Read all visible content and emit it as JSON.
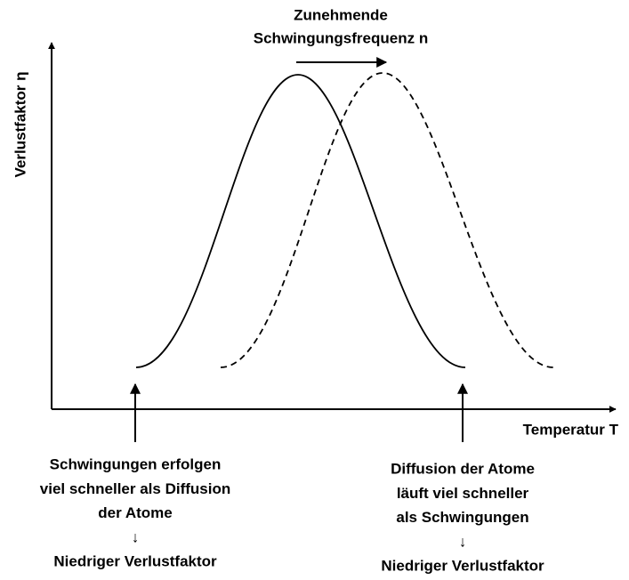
{
  "arrow_label": [
    "Zunehmende",
    "Schwingungsfrequenz n"
  ],
  "y_axis_label": "Verlustfaktor η",
  "x_axis_label": "Temperatur T",
  "left_note": [
    "Schwingungen erfolgen",
    "viel schneller als Diffusion",
    "der Atome",
    "↓",
    "Niedriger Verlustfaktor"
  ],
  "right_note": [
    "Diffusion der Atome",
    "läuft viel schneller",
    "als Schwingungen",
    "↓",
    "Niedriger Verlustfaktor"
  ]
}
